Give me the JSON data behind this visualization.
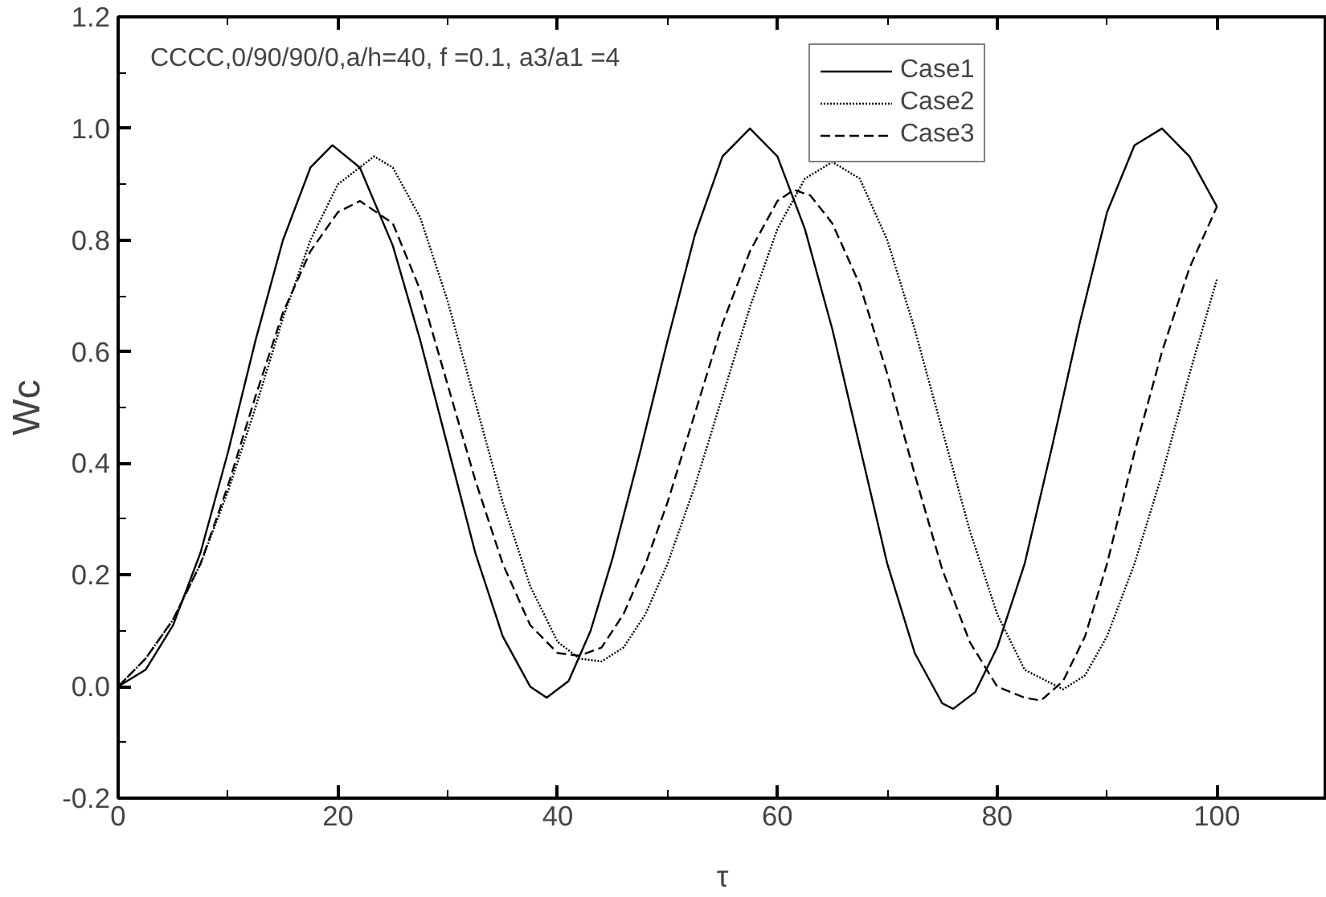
{
  "chart_data": {
    "type": "line",
    "xlabel": "τ",
    "ylabel": "Wc",
    "annotations": [
      "CCCC,0/90/90/0,a/h=40, f =0.1, a3/a1 =4"
    ],
    "xlim": [
      0,
      110
    ],
    "xticks": [
      0,
      20,
      40,
      60,
      80,
      100
    ],
    "ylim": [
      -0.2,
      1.2
    ],
    "yticks": [
      {
        "value": -0.2,
        "label": "-0.2"
      },
      {
        "value": 0,
        "label": "0.0"
      },
      {
        "value": 0.2,
        "label": "0.2"
      },
      {
        "value": 0.4,
        "label": "0.4"
      },
      {
        "value": 0.6,
        "label": "0.6"
      },
      {
        "value": 0.8,
        "label": "0.8"
      },
      {
        "value": 1.0,
        "label": "1.0"
      },
      {
        "value": 1.2,
        "label": "1.2"
      }
    ],
    "legend": "top right",
    "grid": false,
    "marker": "none",
    "series": [
      {
        "name": "Case1",
        "color": "#000000",
        "line_style": "solid",
        "x": [
          0,
          2.5,
          5,
          7.5,
          10,
          12.5,
          15,
          17.5,
          19.5,
          22,
          25,
          27.5,
          30,
          32.5,
          35,
          37.5,
          39,
          41,
          43,
          45,
          47.5,
          50,
          52.5,
          55,
          57.5,
          60,
          62.5,
          65,
          67.5,
          70,
          72.5,
          75,
          76,
          78,
          80,
          82.5,
          85,
          87.5,
          90,
          92.5,
          95,
          97.5,
          100
        ],
        "values": [
          0,
          0.03,
          0.11,
          0.24,
          0.42,
          0.62,
          0.8,
          0.93,
          0.97,
          0.93,
          0.79,
          0.62,
          0.43,
          0.24,
          0.09,
          0.0,
          -0.02,
          0.01,
          0.1,
          0.23,
          0.42,
          0.62,
          0.81,
          0.95,
          1.0,
          0.95,
          0.82,
          0.64,
          0.43,
          0.22,
          0.06,
          -0.03,
          -0.04,
          -0.01,
          0.07,
          0.22,
          0.43,
          0.65,
          0.85,
          0.97,
          1.0,
          0.95,
          0.86
        ]
      },
      {
        "name": "Case2",
        "color": "#000000",
        "line_style": "dotted",
        "x": [
          0,
          2.5,
          5,
          7.5,
          10,
          12.5,
          15,
          17.5,
          20,
          23.3,
          25,
          27.5,
          30,
          32.5,
          35,
          37.5,
          40,
          42,
          44,
          46,
          48,
          50,
          52.5,
          55,
          57.5,
          60,
          62.5,
          65,
          67.5,
          70,
          72.5,
          75,
          77.5,
          80,
          82.5,
          86,
          88,
          90,
          92.5,
          95,
          97.5,
          100
        ],
        "values": [
          0,
          0.05,
          0.12,
          0.22,
          0.35,
          0.5,
          0.66,
          0.8,
          0.9,
          0.95,
          0.93,
          0.84,
          0.69,
          0.51,
          0.33,
          0.18,
          0.08,
          0.05,
          0.045,
          0.07,
          0.13,
          0.22,
          0.36,
          0.52,
          0.68,
          0.82,
          0.91,
          0.94,
          0.91,
          0.8,
          0.64,
          0.46,
          0.28,
          0.13,
          0.03,
          -0.005,
          0.02,
          0.09,
          0.22,
          0.38,
          0.56,
          0.73
        ]
      },
      {
        "name": "Case3",
        "color": "#000000",
        "line_style": "dashed",
        "x": [
          0,
          2.5,
          5,
          7.5,
          10,
          12.5,
          15,
          17.5,
          20,
          22,
          25,
          27.5,
          30,
          32.5,
          35,
          37.5,
          40,
          42,
          44,
          46,
          48,
          50,
          52.5,
          55,
          57.5,
          60,
          61.5,
          63,
          65,
          67.5,
          70,
          72.5,
          75,
          77.5,
          80,
          82.5,
          84,
          86,
          88,
          90,
          92.5,
          95,
          97.5,
          100
        ],
        "values": [
          0,
          0.05,
          0.12,
          0.22,
          0.36,
          0.52,
          0.67,
          0.78,
          0.85,
          0.87,
          0.83,
          0.71,
          0.54,
          0.37,
          0.22,
          0.11,
          0.06,
          0.055,
          0.07,
          0.13,
          0.22,
          0.33,
          0.49,
          0.65,
          0.78,
          0.87,
          0.89,
          0.88,
          0.83,
          0.72,
          0.56,
          0.38,
          0.21,
          0.08,
          0.0,
          -0.02,
          -0.025,
          0.01,
          0.09,
          0.22,
          0.42,
          0.6,
          0.75,
          0.86
        ]
      }
    ]
  }
}
